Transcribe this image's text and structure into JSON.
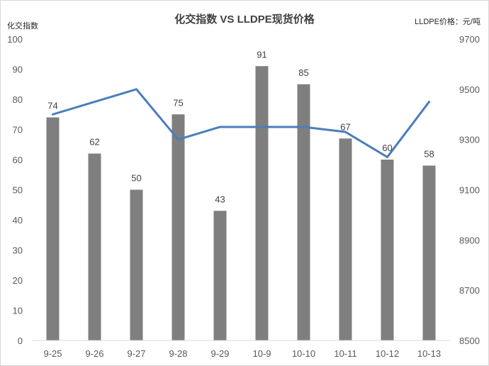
{
  "chart_data": {
    "type": "bar",
    "title": "化交指数 VS LLDPE现货价格",
    "ylabel": "化交指数",
    "y2label": "LLDPE价格：元/吨",
    "categories": [
      "9-25",
      "9-26",
      "9-27",
      "9-28",
      "9-29",
      "10-9",
      "10-10",
      "10-11",
      "10-12",
      "10-13"
    ],
    "ylim": [
      0,
      100
    ],
    "y_ticks": [
      "0",
      "10",
      "20",
      "30",
      "40",
      "50",
      "60",
      "70",
      "80",
      "90",
      "100"
    ],
    "y2lim": [
      8500,
      9700
    ],
    "y2_ticks": [
      "8500",
      "8700",
      "8900",
      "9100",
      "9300",
      "9500",
      "9700"
    ],
    "grid": false,
    "series": [
      {
        "name": "化交指数",
        "type": "bar",
        "axis": "left",
        "color": "#7f7f7f",
        "values": [
          74,
          62,
          50,
          75,
          43,
          91,
          85,
          67,
          60,
          58
        ],
        "labels": [
          "74",
          "62",
          "50",
          "75",
          "43",
          "91",
          "85",
          "67",
          "60",
          "58"
        ]
      },
      {
        "name": "LLDPE现货价格",
        "type": "line",
        "axis": "right",
        "color": "#4a7ebb",
        "values": [
          9400,
          9450,
          9500,
          9300,
          9350,
          9350,
          9350,
          9330,
          9230,
          9450
        ]
      }
    ]
  }
}
